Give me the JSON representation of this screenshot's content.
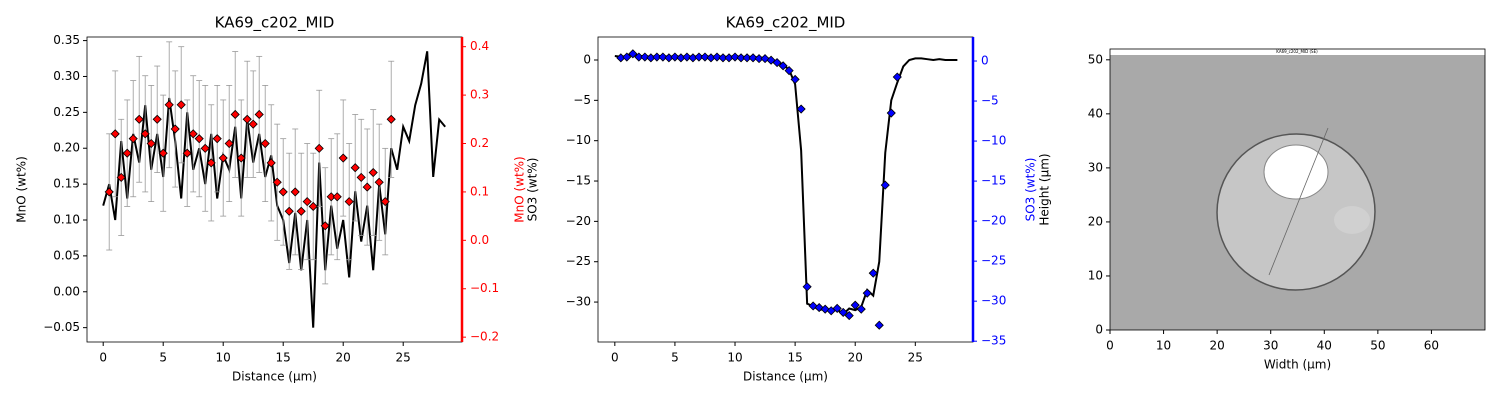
{
  "chart_data": [
    {
      "type": "line",
      "title": "KA69_c202_MID",
      "xlabel": "Distance (µm)",
      "ylabel": "MnO (wt%)",
      "y2label": "MnO (wt%)",
      "xlim": [
        -1.35,
        29.9
      ],
      "xticks": [
        0,
        5,
        10,
        15,
        20,
        25
      ],
      "ylim": [
        -0.07,
        0.355
      ],
      "yticks": [
        {
          "value": -0.05,
          "label": "−0.05"
        },
        {
          "value": 0,
          "label": "0.00"
        },
        0.05,
        {
          "value": 0.1,
          "label": "0.10"
        },
        0.15,
        {
          "value": 0.2,
          "label": "0.20"
        },
        0.25,
        {
          "value": 0.3,
          "label": "0.30"
        },
        0.35
      ],
      "y2lim": [
        -0.21,
        0.42
      ],
      "y2ticks": [
        {
          "value": -0.2,
          "label": "−0.2"
        },
        {
          "value": -0.1,
          "label": "−0.1"
        },
        {
          "value": 0,
          "label": "0.0"
        },
        0.1,
        0.2,
        0.3,
        0.4
      ],
      "series": [
        {
          "color": "#000000",
          "x": [
            0,
            0.5,
            1,
            1.5,
            2,
            2.5,
            3,
            3.5,
            4,
            4.5,
            5,
            5.5,
            6,
            6.5,
            7,
            7.5,
            8,
            8.5,
            9,
            9.5,
            10,
            10.5,
            11,
            11.5,
            12,
            12.5,
            13,
            13.5,
            14,
            14.5,
            15,
            15.5,
            16,
            16.5,
            17,
            17.5,
            18,
            18.5,
            19,
            19.5,
            20,
            20.5,
            21,
            21.5,
            22,
            22.5,
            23,
            23.5,
            24,
            24.5,
            25,
            25.5,
            26,
            26.5,
            27,
            27.5,
            28,
            28.5
          ],
          "values": [
            0.12,
            0.15,
            0.1,
            0.21,
            0.13,
            0.22,
            0.18,
            0.26,
            0.17,
            0.22,
            0.16,
            0.27,
            0.21,
            0.13,
            0.25,
            0.17,
            0.2,
            0.15,
            0.22,
            0.13,
            0.19,
            0.17,
            0.23,
            0.13,
            0.24,
            0.18,
            0.22,
            0.16,
            0.19,
            0.12,
            0.1,
            0.04,
            0.11,
            0.03,
            0.1,
            -0.05,
            0.18,
            0.03,
            0.12,
            0.06,
            0.1,
            0.02,
            0.14,
            0.07,
            0.12,
            0.03,
            0.15,
            0.08,
            0.2,
            0.17,
            0.23,
            0.21,
            0.26,
            0.29,
            0.335,
            0.16,
            0.24,
            0.23
          ]
        },
        {
          "color": "#ff0000",
          "axis": "y2",
          "marker": "diamond",
          "x": [
            0.5,
            1,
            1.5,
            2,
            2.5,
            3,
            3.5,
            4,
            4.5,
            5,
            5.5,
            6,
            6.5,
            7,
            7.5,
            8,
            8.5,
            9,
            9.5,
            10,
            10.5,
            11,
            11.5,
            12,
            12.5,
            13,
            13.5,
            14,
            14.5,
            15,
            15.5,
            16,
            16.5,
            17,
            17.5,
            18,
            18.5,
            19,
            19.5,
            20,
            20.5,
            21,
            21.5,
            22,
            22.5,
            23,
            23.5,
            24
          ],
          "values": [
            0.1,
            0.22,
            0.13,
            0.18,
            0.21,
            0.25,
            0.22,
            0.2,
            0.25,
            0.18,
            0.28,
            0.23,
            0.28,
            0.18,
            0.22,
            0.21,
            0.19,
            0.16,
            0.21,
            0.17,
            0.2,
            0.26,
            0.17,
            0.25,
            0.24,
            0.26,
            0.2,
            0.16,
            0.12,
            0.1,
            0.06,
            0.1,
            0.06,
            0.08,
            0.07,
            0.19,
            0.03,
            0.09,
            0.09,
            0.17,
            0.08,
            0.15,
            0.13,
            0.11,
            0.14,
            0.12,
            0.08,
            0.25
          ],
          "errors": [
            0.12,
            0.13,
            0.12,
            0.11,
            0.12,
            0.13,
            0.12,
            0.12,
            0.11,
            0.12,
            0.13,
            0.12,
            0.12,
            0.11,
            0.12,
            0.12,
            0.13,
            0.12,
            0.11,
            0.12,
            0.12,
            0.13,
            0.12,
            0.12,
            0.11,
            0.12,
            0.12,
            0.12,
            0.12,
            0.11,
            0.12,
            0.13,
            0.12,
            0.12,
            0.11,
            0.12,
            0.12,
            0.12,
            0.13,
            0.12,
            0.12,
            0.11,
            0.12,
            0.12,
            0.13,
            0.12,
            0.11,
            0.12
          ]
        }
      ]
    },
    {
      "type": "line",
      "title": "KA69_c202_MID",
      "xlabel": "Distance (µm)",
      "ylabel": "SO3 (wt%)",
      "y2label": "SO3 (wt%)",
      "xlim": [
        -1.4,
        29.8
      ],
      "xticks": [
        0,
        5,
        10,
        15,
        20,
        25
      ],
      "ylim": [
        -34.95,
        2.85
      ],
      "yticks": [
        {
          "value": -30,
          "label": "−30"
        },
        {
          "value": -25,
          "label": "−25"
        },
        {
          "value": -20,
          "label": "−20"
        },
        {
          "value": -15,
          "label": "−15"
        },
        {
          "value": -10,
          "label": "−10"
        },
        {
          "value": -5,
          "label": "−5"
        },
        0
      ],
      "y2lim": [
        -35.1,
        3
      ],
      "y2ticks": [
        {
          "value": -35,
          "label": "−35"
        },
        {
          "value": -30,
          "label": "−30"
        },
        {
          "value": -25,
          "label": "−25"
        },
        {
          "value": -20,
          "label": "−20"
        },
        {
          "value": -15,
          "label": "−15"
        },
        {
          "value": -10,
          "label": "−10"
        },
        {
          "value": -5,
          "label": "−5"
        },
        0
      ],
      "series": [
        {
          "color": "#000000",
          "x": [
            0,
            0.5,
            1,
            1.5,
            2,
            2.5,
            3,
            3.5,
            4,
            4.5,
            5,
            5.5,
            6,
            6.5,
            7,
            7.5,
            8,
            8.5,
            9,
            9.5,
            10,
            10.5,
            11,
            11.5,
            12,
            12.5,
            13,
            13.5,
            14,
            14.5,
            15,
            15.5,
            16,
            16.5,
            17,
            17.5,
            18,
            18.5,
            19,
            19.5,
            20,
            20.5,
            21,
            21.5,
            22,
            22.5,
            23,
            23.5,
            24,
            24.5,
            25,
            25.5,
            26,
            26.5,
            27,
            27.5,
            28,
            28.5
          ],
          "values": [
            0.5,
            0.4,
            0.5,
            0.8,
            0.5,
            0.5,
            0.4,
            0.5,
            0.5,
            0.4,
            0.5,
            0.4,
            0.5,
            0.4,
            0.5,
            0.5,
            0.4,
            0.5,
            0.4,
            0.4,
            0.5,
            0.4,
            0.4,
            0.4,
            0.3,
            0.3,
            0.1,
            -0.2,
            -0.6,
            -1.2,
            -3.0,
            -11.2,
            -30.2,
            -30.5,
            -31.0,
            -30.8,
            -31.2,
            -30.9,
            -31.5,
            -30.8,
            -31.0,
            -30.6,
            -28.5,
            -29.2,
            -25.0,
            -11.5,
            -5.0,
            -2.8,
            -0.8,
            0.0,
            0.2,
            0.2,
            0.1,
            0.0,
            0.1,
            0.0,
            0.0,
            0.0
          ]
        },
        {
          "color": "#0000ff",
          "axis": "y2",
          "marker": "diamond",
          "x": [
            0.5,
            1,
            1.5,
            2,
            2.5,
            3,
            3.5,
            4,
            4.5,
            5,
            5.5,
            6,
            6.5,
            7,
            7.5,
            8,
            8.5,
            9,
            9.5,
            10,
            10.5,
            11,
            11.5,
            12,
            12.5,
            13,
            13.5,
            14,
            14.5,
            15,
            15.5,
            16,
            16.5,
            17,
            17.5,
            18,
            18.5,
            19,
            19.5,
            20,
            20.5,
            21,
            21.5,
            22,
            22.5,
            23,
            23.5
          ],
          "values": [
            0.4,
            0.5,
            0.9,
            0.5,
            0.5,
            0.4,
            0.5,
            0.5,
            0.4,
            0.5,
            0.4,
            0.5,
            0.4,
            0.5,
            0.5,
            0.4,
            0.5,
            0.4,
            0.4,
            0.5,
            0.4,
            0.4,
            0.4,
            0.3,
            0.3,
            0.1,
            -0.2,
            -0.6,
            -1.2,
            -2.3,
            -6.0,
            -28.2,
            -30.6,
            -30.8,
            -31.0,
            -31.2,
            -30.9,
            -31.4,
            -31.8,
            -30.5,
            -31.0,
            -29.0,
            -26.5,
            -33.0,
            -15.5,
            -6.5,
            -2.0
          ]
        }
      ]
    },
    {
      "type": "image",
      "image_title": "KA69_c202_MID (SE)",
      "xlabel": "Width (µm)",
      "ylabel": "Height (µm)",
      "xlim": [
        0,
        70
      ],
      "xticks": [
        0,
        10,
        20,
        30,
        40,
        50,
        60
      ],
      "ylim": [
        0,
        52
      ],
      "yticks": [
        0,
        10,
        20,
        30,
        40,
        50
      ]
    }
  ]
}
